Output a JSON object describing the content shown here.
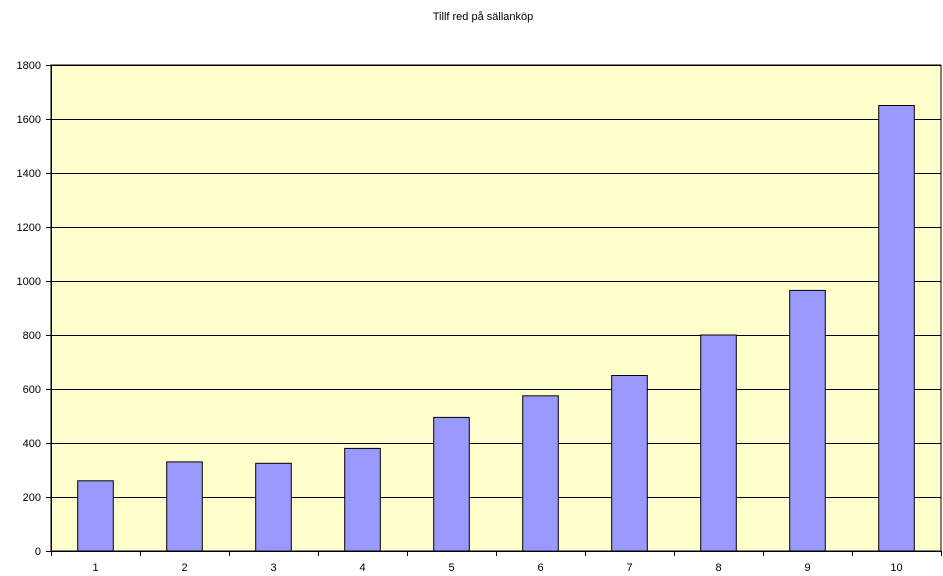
{
  "chart_data": {
    "type": "bar",
    "title": "Tillf red på sällanköp",
    "xlabel": "",
    "ylabel": "",
    "categories": [
      "1",
      "2",
      "3",
      "4",
      "5",
      "6",
      "7",
      "8",
      "9",
      "10"
    ],
    "values": [
      260,
      330,
      325,
      380,
      495,
      575,
      650,
      800,
      965,
      1650
    ],
    "ylim": [
      0,
      1800
    ],
    "yticks": [
      0,
      200,
      400,
      600,
      800,
      1000,
      1200,
      1400,
      1600,
      1800
    ],
    "grid": true,
    "legend": "none",
    "colors": {
      "bar_fill": "#9999FF",
      "bar_stroke": "#000000",
      "plot_background": "#FFFFCC",
      "gridline": "#000000",
      "axis": "#000000"
    }
  }
}
